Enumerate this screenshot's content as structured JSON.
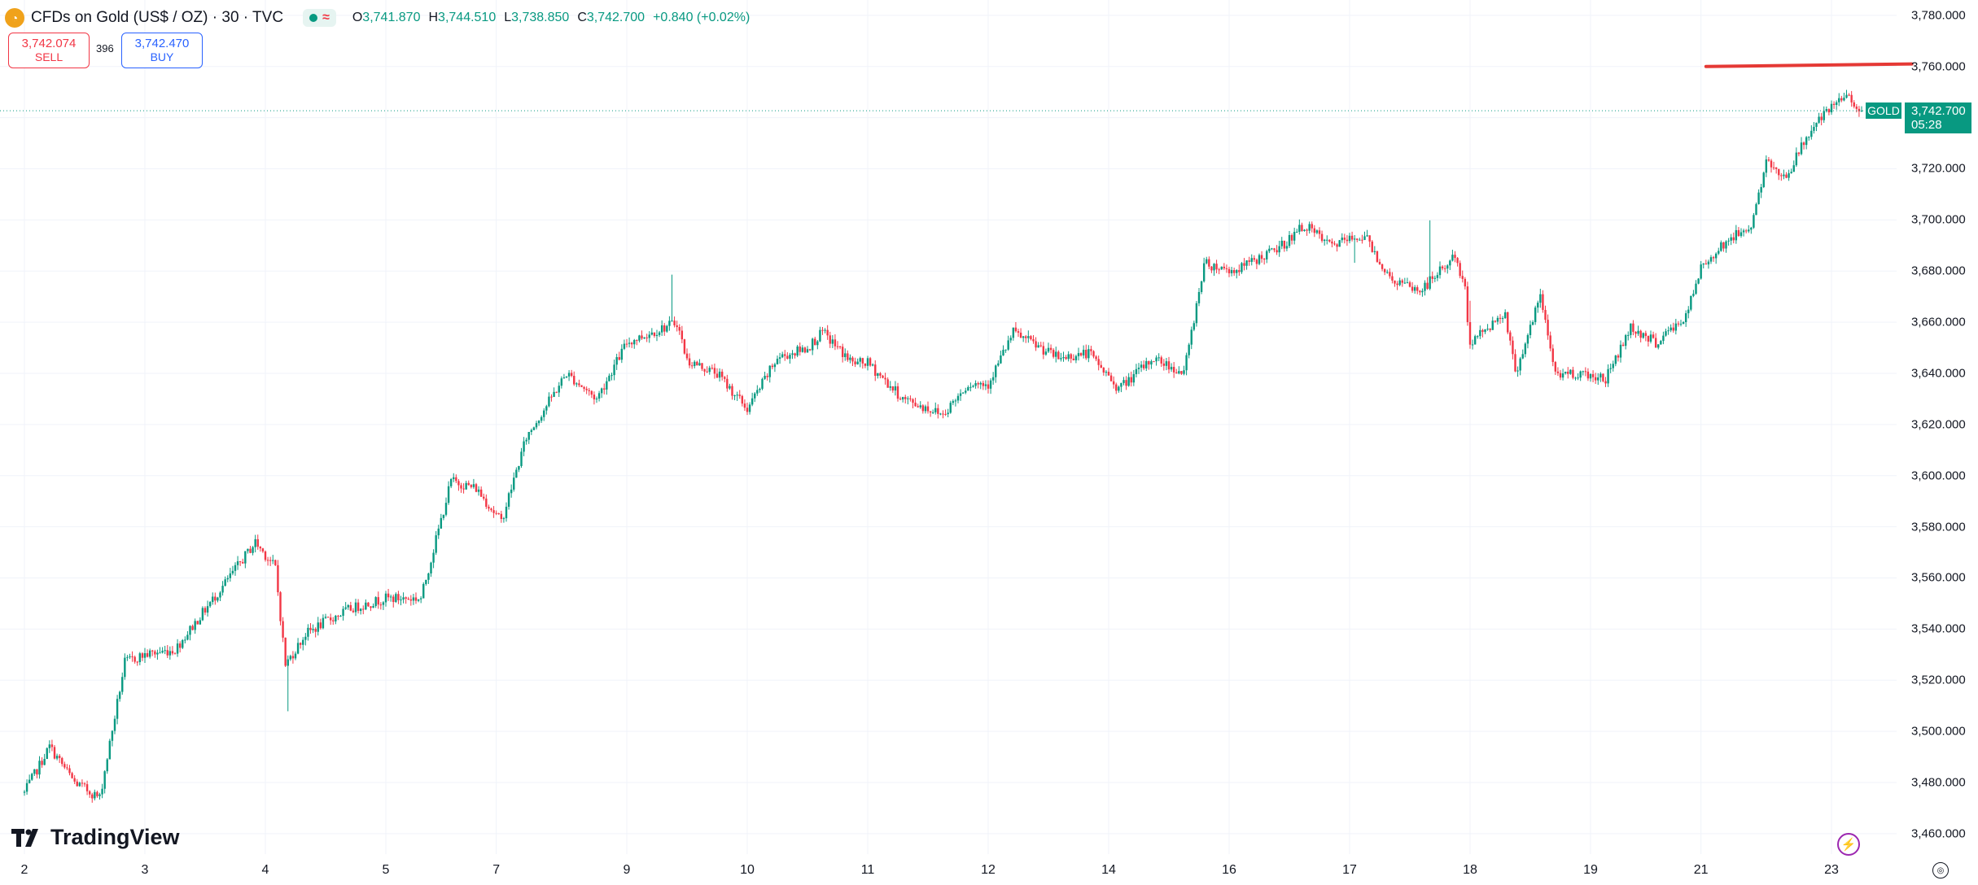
{
  "header": {
    "title": "CFDs on Gold (US$ / OZ) · 30 · TVC",
    "icon": "gold-coin-icon",
    "status_icon": "market-open-dot-icon",
    "wave_icon": "approx-icon",
    "open_key": "O",
    "open": "3,741.870",
    "high_key": "H",
    "high": "3,744.510",
    "low_key": "L",
    "low": "3,738.850",
    "close_key": "C",
    "close": "3,742.700",
    "change": "+0.840 (+0.02%)"
  },
  "trade": {
    "sell_price": "3,742.074",
    "sell_label": "SELL",
    "spread": "396",
    "buy_price": "3,742.470",
    "buy_label": "BUY"
  },
  "price_tag": {
    "symbol": "GOLD",
    "price": "3,742.700",
    "countdown": "05:28"
  },
  "brand": {
    "name": "TradingView"
  },
  "colors": {
    "up": "#089981",
    "down": "#f23645",
    "accent": "#2962ff",
    "drawing": "#e53935"
  },
  "chart_data": {
    "type": "candlestick",
    "title": "CFDs on Gold (US$ / OZ) · 30 · TVC",
    "interval": "30",
    "y_ticks": [
      "3,460.000",
      "3,480.000",
      "3,500.000",
      "3,520.000",
      "3,540.000",
      "3,560.000",
      "3,580.000",
      "3,600.000",
      "3,620.000",
      "3,640.000",
      "3,660.000",
      "3,680.000",
      "3,700.000",
      "3,720.000",
      "3,740.000",
      "3,760.000",
      "3,780.000"
    ],
    "ylim": [
      3452,
      3786
    ],
    "x_tick_labels": [
      "2",
      "3",
      "4",
      "5",
      "7",
      "9",
      "10",
      "11",
      "12",
      "14",
      "16",
      "17",
      "18",
      "19",
      "21",
      "23"
    ],
    "x_tick_index": [
      0,
      48,
      96,
      144,
      188,
      240,
      288,
      336,
      384,
      432,
      480,
      528,
      576,
      624,
      668,
      720
    ],
    "bar_count": 734,
    "price_path": [
      [
        0,
        3476
      ],
      [
        10,
        3494
      ],
      [
        20,
        3480
      ],
      [
        30,
        3474
      ],
      [
        40,
        3527
      ],
      [
        48,
        3530
      ],
      [
        60,
        3532
      ],
      [
        80,
        3558
      ],
      [
        92,
        3574
      ],
      [
        100,
        3564
      ],
      [
        104,
        3526
      ],
      [
        112,
        3538
      ],
      [
        120,
        3543
      ],
      [
        130,
        3548
      ],
      [
        144,
        3552
      ],
      [
        158,
        3552
      ],
      [
        170,
        3598
      ],
      [
        180,
        3595
      ],
      [
        190,
        3582
      ],
      [
        200,
        3615
      ],
      [
        216,
        3640
      ],
      [
        228,
        3630
      ],
      [
        240,
        3652
      ],
      [
        260,
        3660
      ],
      [
        264,
        3645
      ],
      [
        276,
        3640
      ],
      [
        288,
        3626
      ],
      [
        300,
        3646
      ],
      [
        312,
        3650
      ],
      [
        318,
        3656
      ],
      [
        330,
        3644
      ],
      [
        336,
        3644
      ],
      [
        350,
        3630
      ],
      [
        366,
        3624
      ],
      [
        376,
        3636
      ],
      [
        384,
        3636
      ],
      [
        394,
        3656
      ],
      [
        412,
        3646
      ],
      [
        424,
        3648
      ],
      [
        436,
        3634
      ],
      [
        450,
        3646
      ],
      [
        462,
        3640
      ],
      [
        470,
        3683
      ],
      [
        482,
        3680
      ],
      [
        500,
        3689
      ],
      [
        510,
        3698
      ],
      [
        520,
        3690
      ],
      [
        534,
        3694
      ],
      [
        544,
        3677
      ],
      [
        556,
        3672
      ],
      [
        570,
        3686
      ],
      [
        574,
        3672
      ],
      [
        576,
        3652
      ],
      [
        590,
        3664
      ],
      [
        594,
        3640
      ],
      [
        604,
        3670
      ],
      [
        610,
        3640
      ],
      [
        620,
        3640
      ],
      [
        630,
        3638
      ],
      [
        640,
        3658
      ],
      [
        650,
        3652
      ],
      [
        662,
        3662
      ],
      [
        668,
        3681
      ],
      [
        676,
        3690
      ],
      [
        688,
        3698
      ],
      [
        694,
        3722
      ],
      [
        702,
        3717
      ],
      [
        712,
        3736
      ],
      [
        726,
        3749
      ],
      [
        732,
        3743
      ]
    ],
    "resistance_line": {
      "x": [
        670,
        752
      ],
      "y": [
        3760,
        3761
      ]
    },
    "last_price": 3742.7,
    "grid": true
  }
}
